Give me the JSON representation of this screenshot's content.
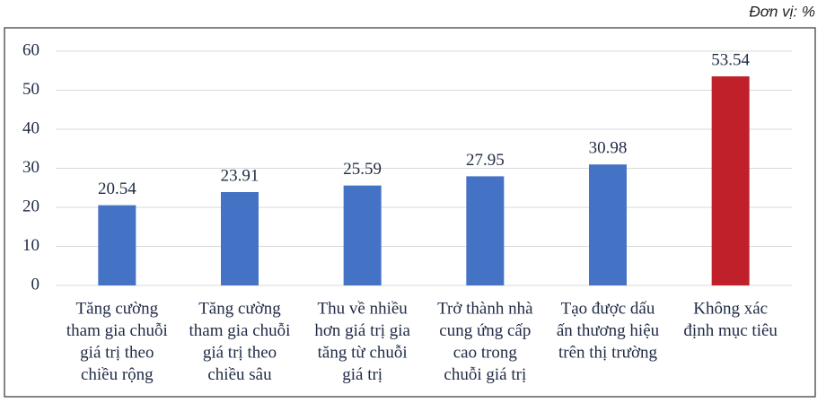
{
  "chart_data": {
    "type": "bar",
    "unit_label": "Đơn vị: %",
    "categories": [
      [
        "Tăng cường",
        "tham gia chuỗi",
        "giá trị theo",
        "chiều rộng"
      ],
      [
        "Tăng cường",
        "tham gia chuỗi",
        "giá trị theo",
        "chiều sâu"
      ],
      [
        "Thu về nhiều",
        "hơn giá trị gia",
        "tăng từ chuỗi",
        "giá trị"
      ],
      [
        "Trở thành nhà",
        "cung ứng cấp",
        "cao trong",
        "chuỗi giá trị"
      ],
      [
        "Tạo được dấu",
        "ấn thương hiệu",
        "trên thị trường"
      ],
      [
        "Không xác",
        "định mục tiêu"
      ]
    ],
    "values": [
      20.54,
      23.91,
      25.59,
      27.95,
      30.98,
      53.54
    ],
    "colors": [
      "#4472c4",
      "#4472c4",
      "#4472c4",
      "#4472c4",
      "#4472c4",
      "#c0202a"
    ],
    "ylim": [
      0,
      60
    ],
    "yticks": [
      0,
      10,
      20,
      30,
      40,
      50,
      60
    ],
    "grid": true
  }
}
